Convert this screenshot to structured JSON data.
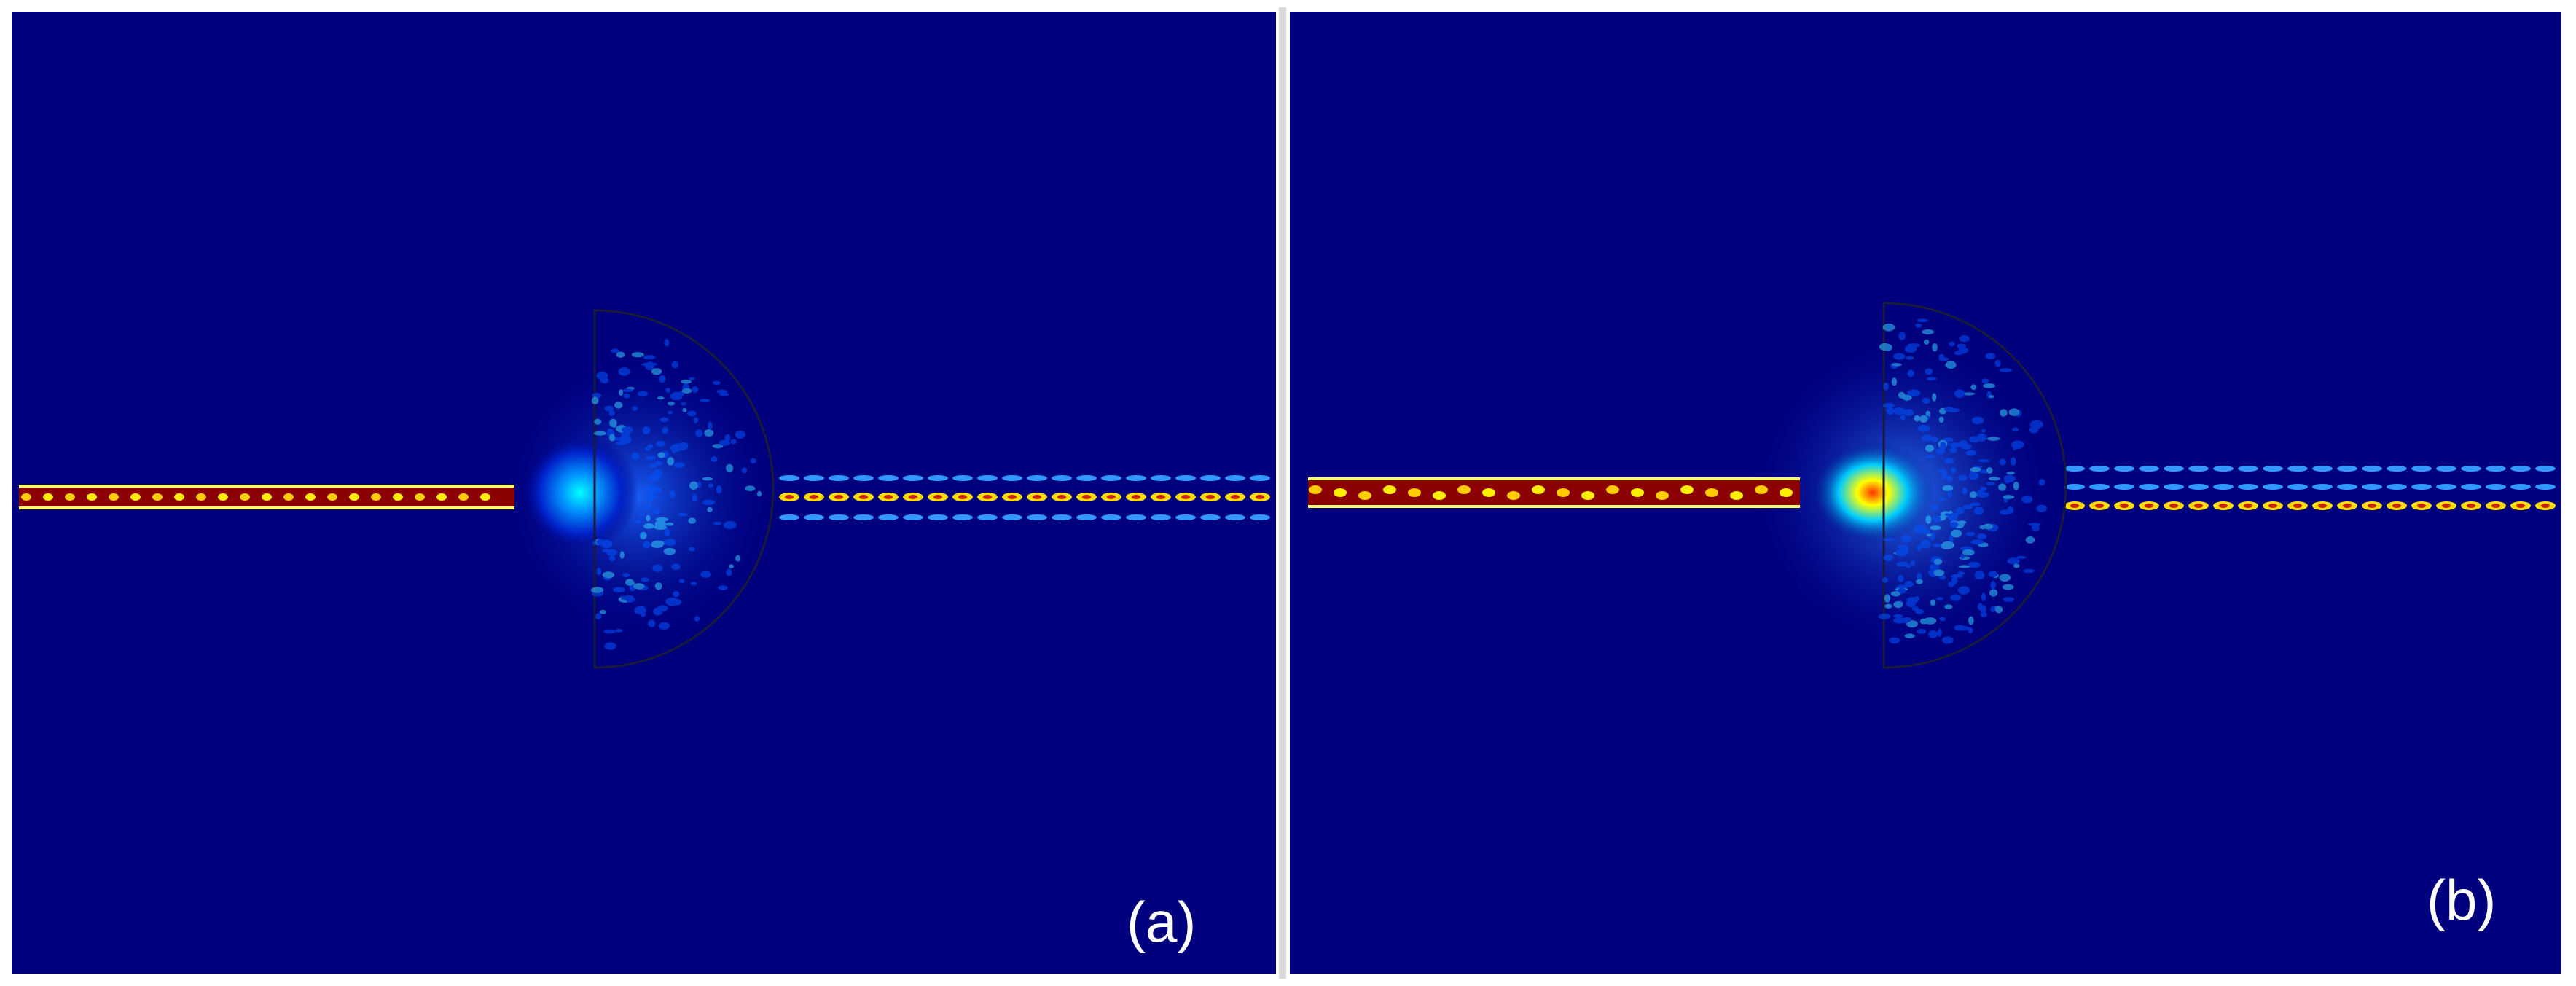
{
  "panels": [
    {
      "id": "a",
      "label": "(a)",
      "outputs": 3
    },
    {
      "id": "b",
      "label": "(b)",
      "outputs": 3
    }
  ],
  "colors": {
    "background": "#00007f",
    "field_low": "#0033ff",
    "field_mid": "#00ffff",
    "field_high": "#ffff00",
    "field_max": "#8b0000",
    "outline": "#1a1a3a"
  }
}
